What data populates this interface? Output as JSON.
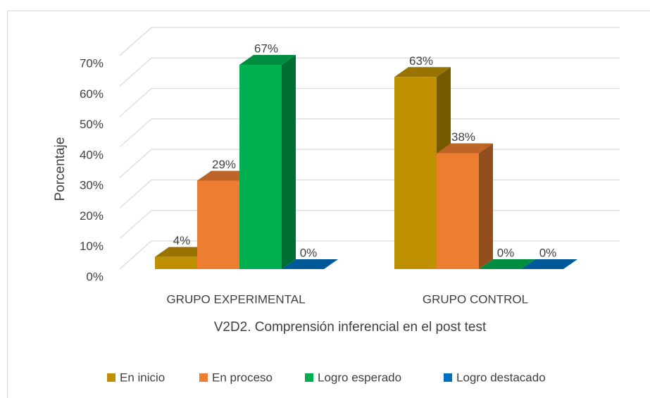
{
  "chart_data": {
    "type": "bar3d",
    "xlabel": "V2D2. Comprensión inferencial en el post test",
    "ylabel": "Porcentaje",
    "categories": [
      "GRUPO EXPERIMENTAL",
      "GRUPO CONTROL"
    ],
    "series": [
      {
        "name": "En inicio",
        "color": "#bf9000",
        "values": [
          4,
          63
        ],
        "value_labels": [
          "4%",
          "63%"
        ]
      },
      {
        "name": "En proceso",
        "color": "#ed7d31",
        "values": [
          29,
          38
        ],
        "value_labels": [
          "29%",
          "38%"
        ]
      },
      {
        "name": "Logro esperado",
        "color": "#00b050",
        "values": [
          67,
          0
        ],
        "value_labels": [
          "67%",
          "0%"
        ]
      },
      {
        "name": "Logro destacado",
        "color": "#0070c0",
        "values": [
          0,
          0
        ],
        "value_labels": [
          "0%",
          "0%"
        ]
      }
    ],
    "ylim": [
      0,
      70
    ],
    "yticks": [
      {
        "value": 0,
        "label": "0%"
      },
      {
        "value": 10,
        "label": "10%"
      },
      {
        "value": 20,
        "label": "20%"
      },
      {
        "value": 30,
        "label": "30%"
      },
      {
        "value": 40,
        "label": "40%"
      },
      {
        "value": 50,
        "label": "50%"
      },
      {
        "value": 60,
        "label": "60%"
      },
      {
        "value": 70,
        "label": "70%"
      }
    ],
    "grid": true,
    "legend": "bottom"
  }
}
